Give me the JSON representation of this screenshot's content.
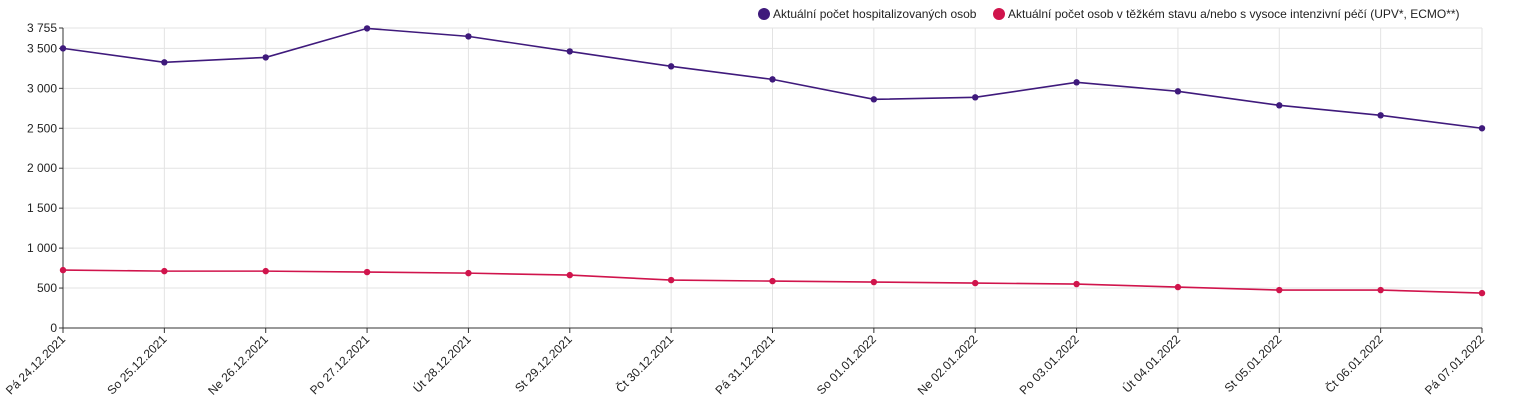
{
  "chart_data": {
    "type": "line",
    "categories": [
      "Pá 24.12.2021",
      "So 25.12.2021",
      "Ne 26.12.2021",
      "Po 27.12.2021",
      "Út 28.12.2021",
      "St 29.12.2021",
      "Čt 30.12.2021",
      "Pá 31.12.2021",
      "So 01.01.2022",
      "Ne 02.01.2022",
      "Po 03.01.2022",
      "Út 04.01.2022",
      "St 05.01.2022",
      "Čt 06.01.2022",
      "Pá 07.01.2022"
    ],
    "series": [
      {
        "name": "Aktuální počet hospitalizovaných osob",
        "color": "#3f1a7c",
        "values": [
          3500,
          3325,
          3387,
          3750,
          3650,
          3462,
          3275,
          3112,
          2862,
          2887,
          3075,
          2962,
          2787,
          2662,
          2500
        ]
      },
      {
        "name": "Aktuální počet osob v těžkém stavu a/nebo s vysoce intenzivní péčí (UPV*, ECMO**)",
        "color": "#d0144c",
        "values": [
          725,
          712,
          712,
          700,
          687,
          662,
          600,
          587,
          575,
          562,
          550,
          512,
          475,
          475,
          437
        ]
      }
    ],
    "ylim": [
      0,
      3755
    ],
    "yticks": [
      0,
      500,
      {
        "value": 1000,
        "label": "1 000"
      },
      {
        "value": 1500,
        "label": "1 500"
      },
      {
        "value": 2000,
        "label": "2 000"
      },
      {
        "value": 2500,
        "label": "2 500"
      },
      {
        "value": 3000,
        "label": "3 000"
      },
      {
        "value": 3500,
        "label": "3 500"
      },
      {
        "value": 3755,
        "label": "3 755"
      }
    ],
    "grid": true
  }
}
